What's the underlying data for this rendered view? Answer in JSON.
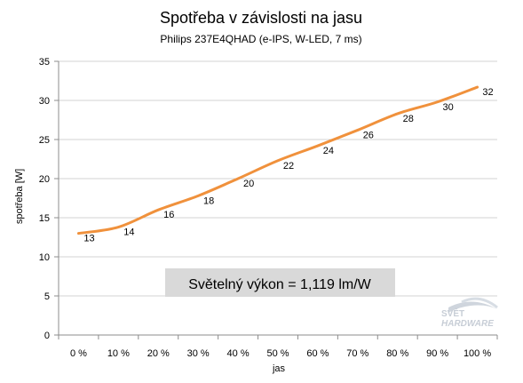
{
  "chart_data": {
    "type": "line",
    "title": "Spotřeba v závislosti na jasu",
    "subtitle": "Philips 237E4QHAD  (e-IPS, W-LED, 7 ms)",
    "xlabel": "jas",
    "ylabel": "spotřeba [W]",
    "categories": [
      "0 %",
      "10 %",
      "20 %",
      "30 %",
      "40 %",
      "50 %",
      "60 %",
      "70 %",
      "80 %",
      "90 %",
      "100 %"
    ],
    "y_ticks": [
      "0",
      "5",
      "10",
      "15",
      "20",
      "25",
      "30",
      "35"
    ],
    "ylim": [
      0,
      35
    ],
    "grid": true,
    "legend": "none",
    "series": [
      {
        "values": [
          13,
          13.8,
          16,
          17.8,
          20,
          22.3,
          24.2,
          26.2,
          28.3,
          29.8,
          31.7
        ],
        "labels": [
          "13",
          "14",
          "16",
          "18",
          "20",
          "22",
          "24",
          "26",
          "28",
          "30",
          "32"
        ],
        "color": "#f0913c"
      }
    ],
    "annotation": "Světelný výkon = 1,119 lm/W",
    "colors": {
      "gridline": "#d3d3d3",
      "axis": "#8c8c8c",
      "annotation_bg": "#d9d9d9"
    }
  },
  "watermark": {
    "line1": "SVĚT",
    "line2": "HARDWARE"
  }
}
